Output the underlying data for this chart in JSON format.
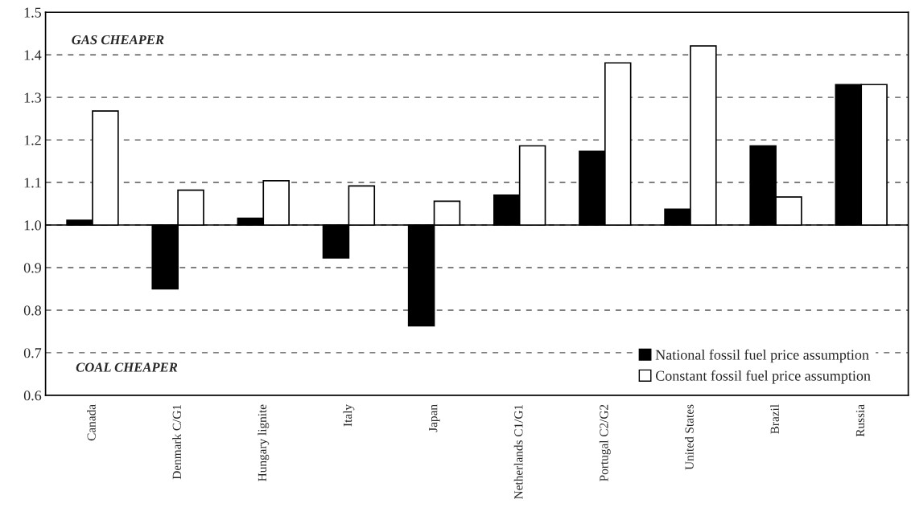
{
  "chart_data": {
    "type": "bar",
    "categories": [
      "Canada",
      "Denmark C/G1",
      "Hungary lignite",
      "Italy",
      "Japan",
      "Netherlands C1/G1",
      "Portugal C2/G2",
      "United States",
      "Brazil",
      "Russia"
    ],
    "series": [
      {
        "name": "National fossil fuel price assumption",
        "color": "#000000",
        "base": [
          1.0,
          1.0,
          1.0,
          1.0,
          1.0,
          1.0,
          1.0,
          1.0,
          1.0,
          1.0
        ],
        "values": [
          0.011,
          -0.15,
          0.016,
          -0.077,
          -0.237,
          0.07,
          0.173,
          0.037,
          0.186,
          0.33
        ]
      },
      {
        "name": "Constant fossil fuel price assumption",
        "color": "#ffffff",
        "base": [
          1.0,
          1.0,
          1.0,
          1.0,
          1.0,
          1.0,
          1.0,
          1.0,
          1.0,
          1.0
        ],
        "values": [
          0.268,
          0.082,
          0.104,
          0.092,
          0.056,
          0.186,
          0.381,
          0.421,
          0.066,
          0.33
        ]
      }
    ],
    "ylim": [
      0.6,
      1.5
    ],
    "yticks": [
      0.6,
      0.7,
      0.8,
      0.9,
      {
        "value": 1.0,
        "label": "1.0"
      },
      1.1,
      1.2,
      1.3,
      1.4,
      1.5
    ],
    "ref_lines": [
      {
        "axis": "y",
        "value": 1.0,
        "color": "#000000",
        "line_style": "solid"
      }
    ],
    "annotations": [
      "GAS CHEAPER",
      "COAL CHEAPER"
    ],
    "grid": "y",
    "legend": "bottom right"
  }
}
